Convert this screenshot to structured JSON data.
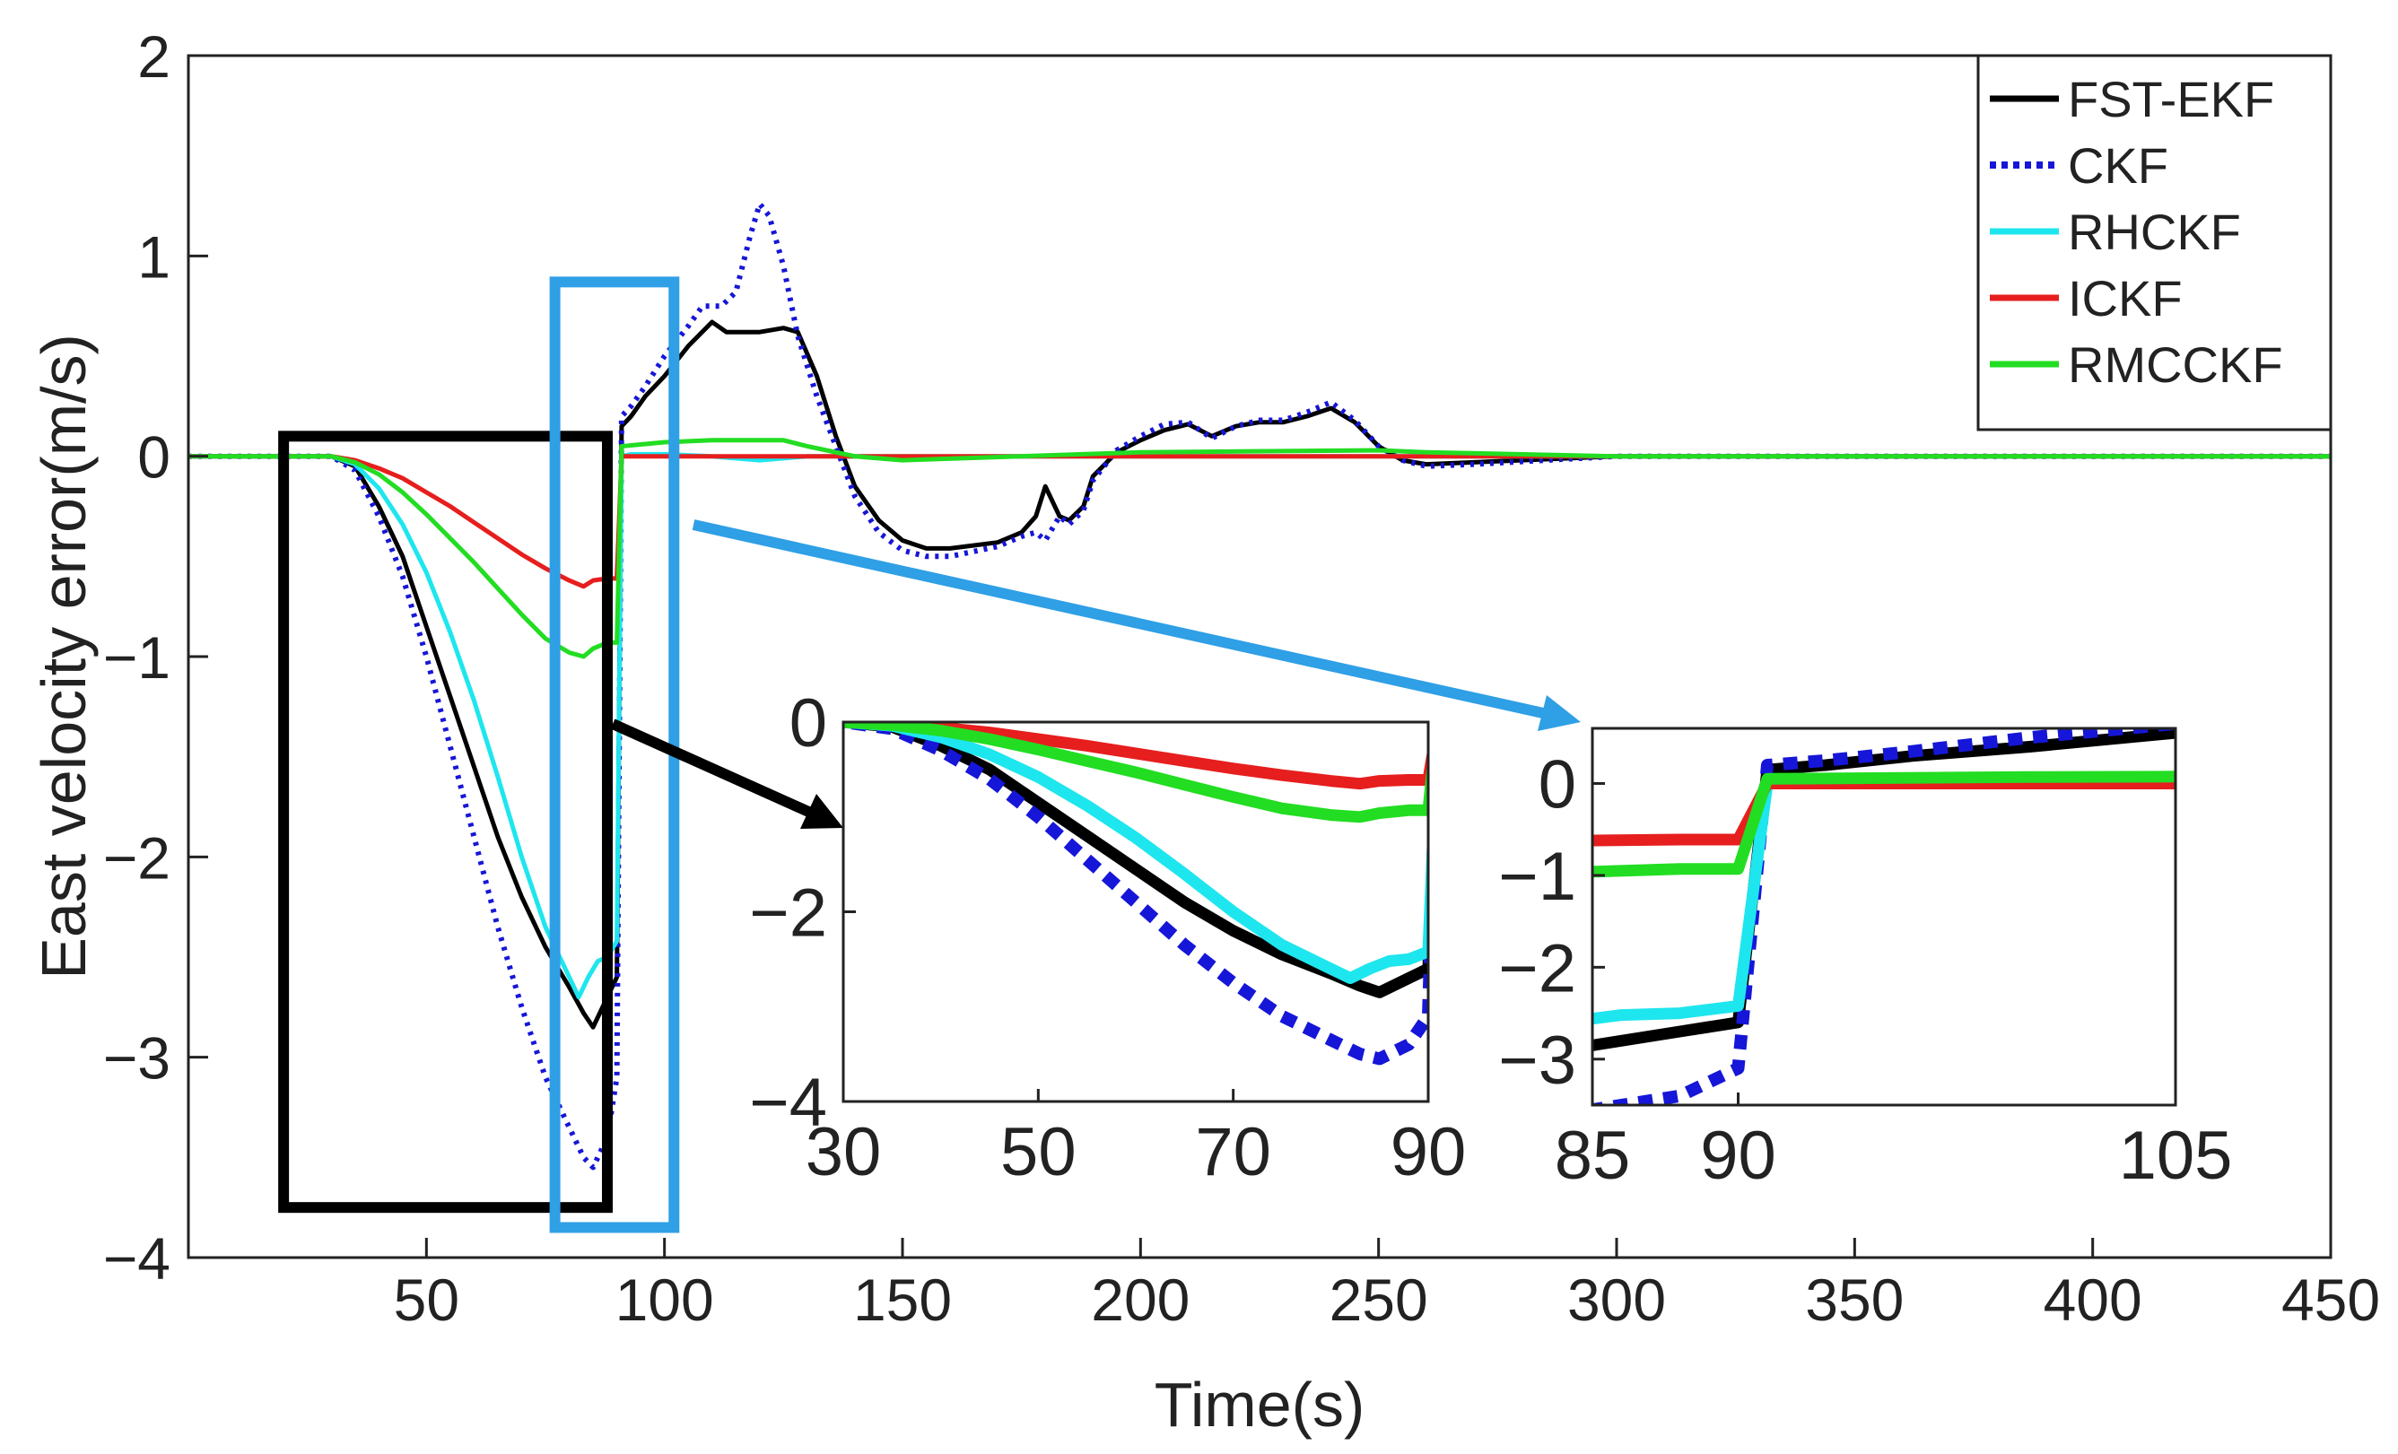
{
  "chart_data": [
    {
      "id": "main",
      "type": "line",
      "title": "",
      "xlabel": "Time(s)",
      "ylabel": "East velocity error(m/s)",
      "xlim": [
        0,
        450
      ],
      "ylim": [
        -4,
        2
      ],
      "xticks": [
        50,
        100,
        150,
        200,
        250,
        300,
        350,
        400,
        450
      ],
      "yticks": [
        2,
        1,
        0,
        -1,
        -2,
        -3,
        -4
      ],
      "xtick_labels": [
        "50",
        "100",
        "150",
        "200",
        "250",
        "300",
        "350",
        "400",
        "450"
      ],
      "ytick_labels": [
        "2",
        "1",
        "0",
        "−1",
        "−2",
        "−3",
        "−4"
      ],
      "grid": false,
      "legend_position": "top-right",
      "series": [
        {
          "name": "FST-EKF",
          "color": "#000000",
          "style": "solid",
          "x": [
            0,
            20,
            25,
            30,
            35,
            40,
            45,
            50,
            55,
            60,
            65,
            70,
            75,
            80,
            83,
            85,
            88,
            90,
            91,
            93,
            96,
            100,
            105,
            110,
            113,
            115,
            117,
            120,
            125,
            128,
            132,
            136,
            140,
            145,
            150,
            155,
            160,
            170,
            175,
            178,
            180,
            183,
            185,
            188,
            190,
            195,
            200,
            205,
            210,
            215,
            220,
            225,
            230,
            235,
            240,
            245,
            250,
            255,
            260,
            270,
            300,
            330,
            450
          ],
          "y": [
            0,
            0,
            0,
            0,
            -0.05,
            -0.25,
            -0.5,
            -0.85,
            -1.2,
            -1.55,
            -1.9,
            -2.2,
            -2.45,
            -2.65,
            -2.78,
            -2.85,
            -2.7,
            -2.6,
            0.15,
            0.2,
            0.3,
            0.4,
            0.55,
            0.67,
            0.62,
            0.62,
            0.62,
            0.62,
            0.64,
            0.62,
            0.4,
            0.1,
            -0.15,
            -0.32,
            -0.42,
            -0.46,
            -0.46,
            -0.43,
            -0.38,
            -0.3,
            -0.15,
            -0.3,
            -0.32,
            -0.25,
            -0.1,
            0.02,
            0.08,
            0.13,
            0.16,
            0.1,
            0.15,
            0.17,
            0.17,
            0.2,
            0.24,
            0.17,
            0.05,
            -0.02,
            -0.04,
            -0.03,
            0,
            0,
            0
          ]
        },
        {
          "name": "CKF",
          "color": "#1616d8",
          "style": "dotted",
          "x": [
            0,
            20,
            25,
            30,
            35,
            40,
            45,
            50,
            55,
            60,
            65,
            70,
            75,
            80,
            83,
            85,
            88,
            90,
            91,
            93,
            96,
            100,
            105,
            108,
            112,
            115,
            118,
            120,
            122,
            125,
            128,
            132,
            136,
            140,
            145,
            150,
            155,
            160,
            170,
            175,
            178,
            180,
            183,
            185,
            188,
            190,
            195,
            200,
            205,
            210,
            215,
            220,
            225,
            230,
            235,
            240,
            245,
            250,
            255,
            260,
            270,
            300,
            330,
            450
          ],
          "y": [
            0,
            0,
            0,
            0,
            -0.07,
            -0.3,
            -0.6,
            -1.0,
            -1.45,
            -1.9,
            -2.35,
            -2.75,
            -3.1,
            -3.35,
            -3.5,
            -3.55,
            -3.4,
            -3.1,
            0.2,
            0.25,
            0.35,
            0.5,
            0.65,
            0.75,
            0.75,
            0.82,
            1.1,
            1.26,
            1.2,
            0.95,
            0.6,
            0.3,
            0.05,
            -0.2,
            -0.38,
            -0.47,
            -0.5,
            -0.5,
            -0.45,
            -0.4,
            -0.38,
            -0.42,
            -0.3,
            -0.34,
            -0.27,
            -0.12,
            0.03,
            0.1,
            0.16,
            0.17,
            0.09,
            0.15,
            0.18,
            0.18,
            0.22,
            0.27,
            0.18,
            0.05,
            -0.02,
            -0.05,
            -0.04,
            0,
            0,
            0
          ]
        },
        {
          "name": "RHCKF",
          "color": "#1ee6ee",
          "style": "solid",
          "x": [
            0,
            20,
            25,
            30,
            35,
            40,
            45,
            50,
            55,
            60,
            65,
            70,
            75,
            80,
            82,
            84,
            86,
            88,
            90,
            91,
            93,
            100,
            110,
            120,
            130,
            150,
            200,
            250,
            300,
            450
          ],
          "y": [
            0,
            0,
            0,
            0,
            -0.04,
            -0.16,
            -0.34,
            -0.58,
            -0.88,
            -1.22,
            -1.6,
            -2.0,
            -2.35,
            -2.6,
            -2.7,
            -2.6,
            -2.52,
            -2.5,
            -2.42,
            0,
            0.01,
            0.01,
            0,
            -0.02,
            0,
            0,
            0,
            0,
            0,
            0
          ]
        },
        {
          "name": "ICKF",
          "color": "#e61e1e",
          "style": "solid",
          "x": [
            0,
            20,
            25,
            30,
            35,
            40,
            45,
            50,
            55,
            60,
            65,
            70,
            75,
            80,
            83,
            85,
            88,
            90,
            91,
            100,
            150,
            200,
            250,
            300,
            450
          ],
          "y": [
            0,
            0,
            0,
            0,
            -0.02,
            -0.06,
            -0.11,
            -0.18,
            -0.25,
            -0.33,
            -0.41,
            -0.49,
            -0.56,
            -0.62,
            -0.65,
            -0.62,
            -0.61,
            -0.61,
            0,
            0,
            0,
            0,
            0,
            0,
            0
          ]
        },
        {
          "name": "RMCCKF",
          "color": "#22dd22",
          "style": "solid",
          "x": [
            0,
            20,
            25,
            30,
            35,
            40,
            45,
            50,
            55,
            60,
            65,
            70,
            75,
            80,
            83,
            85,
            88,
            90,
            91,
            100,
            110,
            125,
            130,
            140,
            150,
            200,
            250,
            260,
            300,
            450
          ],
          "y": [
            0,
            0,
            0,
            0,
            -0.03,
            -0.09,
            -0.18,
            -0.29,
            -0.41,
            -0.53,
            -0.66,
            -0.79,
            -0.91,
            -0.98,
            -1.0,
            -0.96,
            -0.93,
            -0.93,
            0.05,
            0.07,
            0.08,
            0.08,
            0.05,
            0,
            -0.02,
            0.02,
            0.03,
            0.02,
            0,
            0
          ]
        }
      ]
    },
    {
      "id": "inset-1",
      "type": "line",
      "title": "",
      "xlabel": "",
      "ylabel": "",
      "xlim": [
        30,
        90
      ],
      "ylim": [
        -4,
        0
      ],
      "xticks": [
        30,
        50,
        70,
        90
      ],
      "yticks": [
        0,
        -2,
        -4
      ],
      "xtick_labels": [
        "30",
        "50",
        "70",
        "90"
      ],
      "ytick_labels": [
        "0",
        "−2",
        "−4"
      ],
      "series_ref": "main",
      "highlight_box": {
        "x": [
          20,
          88
        ],
        "y": [
          -3.75,
          0.1
        ]
      }
    },
    {
      "id": "inset-2",
      "type": "line",
      "title": "",
      "xlabel": "",
      "ylabel": "",
      "xlim": [
        85,
        105
      ],
      "ylim": [
        -3.5,
        0.6
      ],
      "xticks": [
        85,
        90,
        105
      ],
      "yticks": [
        0,
        -1,
        -2,
        -3
      ],
      "xtick_labels": [
        "85",
        "90",
        "105"
      ],
      "ytick_labels": [
        "0",
        "−1",
        "−2",
        "−3"
      ],
      "series_ref": "main",
      "highlight_box": {
        "x": [
          77,
          102
        ],
        "y": [
          -3.85,
          0.87
        ]
      }
    }
  ],
  "colors": {
    "axis": "#222222",
    "box_black": "#000000",
    "box_blue": "#2f9fe6"
  }
}
